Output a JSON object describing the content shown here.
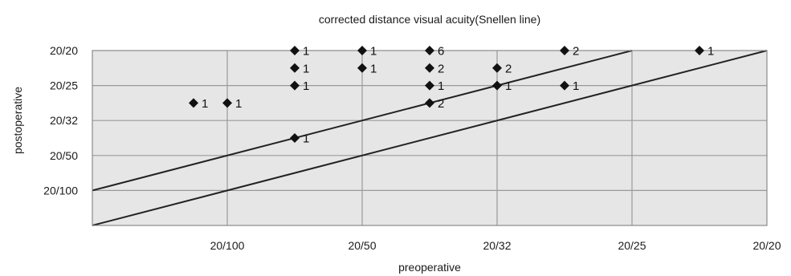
{
  "chart_data": {
    "type": "scatter",
    "title": "corrected distance visual acuity(Snellen line)",
    "xlabel": "preoperative",
    "ylabel": "postoperative",
    "x_ticks": [
      {
        "value": 0,
        "label": ""
      },
      {
        "value": 1,
        "label": "20/100"
      },
      {
        "value": 2,
        "label": "20/50"
      },
      {
        "value": 3,
        "label": "20/32"
      },
      {
        "value": 4,
        "label": "20/25"
      },
      {
        "value": 5,
        "label": "20/20"
      }
    ],
    "y_ticks": [
      {
        "value": 5,
        "label": "20/20"
      },
      {
        "value": 4,
        "label": "20/25"
      },
      {
        "value": 3,
        "label": "20/32"
      },
      {
        "value": 2,
        "label": "20/50"
      },
      {
        "value": 1,
        "label": "20/100"
      }
    ],
    "xlim": [
      0,
      5
    ],
    "ylim": [
      0,
      5
    ],
    "grid": true,
    "reference_lines": [
      {
        "x": [
          0,
          5
        ],
        "y": [
          0,
          5
        ]
      },
      {
        "x": [
          0,
          5
        ],
        "y": [
          1,
          6
        ]
      }
    ],
    "points": [
      {
        "x": 0.75,
        "y": 3.5,
        "label": "1"
      },
      {
        "x": 1.0,
        "y": 3.5,
        "label": "1"
      },
      {
        "x": 1.5,
        "y": 5.0,
        "label": "1"
      },
      {
        "x": 1.5,
        "y": 4.5,
        "label": "1"
      },
      {
        "x": 1.5,
        "y": 4.0,
        "label": "1"
      },
      {
        "x": 1.5,
        "y": 2.5,
        "label": "1"
      },
      {
        "x": 2.0,
        "y": 5.0,
        "label": "1"
      },
      {
        "x": 2.0,
        "y": 4.5,
        "label": "1"
      },
      {
        "x": 2.5,
        "y": 5.0,
        "label": "6"
      },
      {
        "x": 2.5,
        "y": 4.5,
        "label": "2"
      },
      {
        "x": 2.5,
        "y": 4.0,
        "label": "1"
      },
      {
        "x": 2.5,
        "y": 3.5,
        "label": "2"
      },
      {
        "x": 3.0,
        "y": 4.5,
        "label": "2"
      },
      {
        "x": 3.0,
        "y": 4.0,
        "label": "1"
      },
      {
        "x": 3.5,
        "y": 5.0,
        "label": "2"
      },
      {
        "x": 3.5,
        "y": 4.0,
        "label": "1"
      },
      {
        "x": 4.5,
        "y": 5.0,
        "label": "1"
      }
    ],
    "colors": {
      "plot_background": "#e6e6e6",
      "grid": "#9a9a9a",
      "border": "#8a8a8a",
      "reference_line": "#222222",
      "marker": "#111111"
    }
  }
}
